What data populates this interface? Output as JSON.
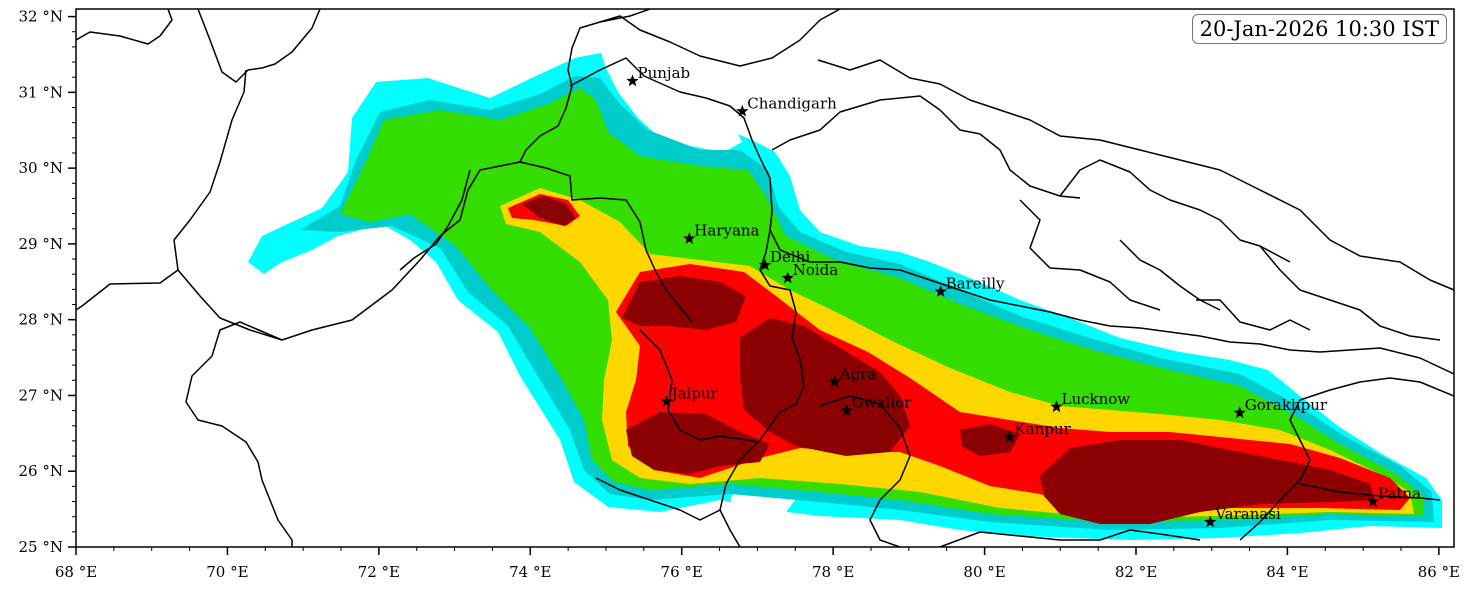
{
  "timestamp": "20-Jan-2026 10:30 IST",
  "axes": {
    "lon_range": [
      68,
      86.2
    ],
    "lat_range": [
      25,
      32.1
    ],
    "lon_ticks": [
      68,
      70,
      72,
      74,
      76,
      78,
      80,
      82,
      84,
      86
    ],
    "lat_ticks": [
      25,
      26,
      27,
      28,
      29,
      30,
      31,
      32
    ],
    "lon_tick_labels": [
      "68 °E",
      "70 °E",
      "72 °E",
      "74 °E",
      "76 °E",
      "78 °E",
      "80 °E",
      "82 °E",
      "84 °E",
      "86 °E"
    ],
    "lat_tick_labels": [
      "25 °N",
      "26 °N",
      "27 °N",
      "28 °N",
      "29 °N",
      "30 °N",
      "31 °N",
      "32 °N"
    ]
  },
  "colors": {
    "level1": "#00ffff",
    "level2": "#00cccc",
    "level3": "#33dd00",
    "level4": "#ffd700",
    "level5": "#ff0000",
    "level6": "#8b0000"
  },
  "cities": [
    {
      "name": "Punjab",
      "lon": 75.35,
      "lat": 31.15
    },
    {
      "name": "Chandigarh",
      "lon": 76.8,
      "lat": 30.75
    },
    {
      "name": "Haryana",
      "lon": 76.1,
      "lat": 29.07
    },
    {
      "name": "Delhi",
      "lon": 77.1,
      "lat": 28.72
    },
    {
      "name": "Noida",
      "lon": 77.4,
      "lat": 28.55
    },
    {
      "name": "Bareilly",
      "lon": 79.42,
      "lat": 28.37
    },
    {
      "name": "Agra",
      "lon": 78.02,
      "lat": 27.18
    },
    {
      "name": "Jaipur",
      "lon": 75.8,
      "lat": 26.92
    },
    {
      "name": "Gwalior",
      "lon": 78.18,
      "lat": 26.8
    },
    {
      "name": "Lucknow",
      "lon": 80.95,
      "lat": 26.85
    },
    {
      "name": "Kanpur",
      "lon": 80.33,
      "lat": 26.45
    },
    {
      "name": "Gorakhpur",
      "lon": 83.37,
      "lat": 26.77
    },
    {
      "name": "Patna",
      "lon": 85.13,
      "lat": 25.6
    },
    {
      "name": "Varanasi",
      "lon": 82.98,
      "lat": 25.33
    }
  ]
}
